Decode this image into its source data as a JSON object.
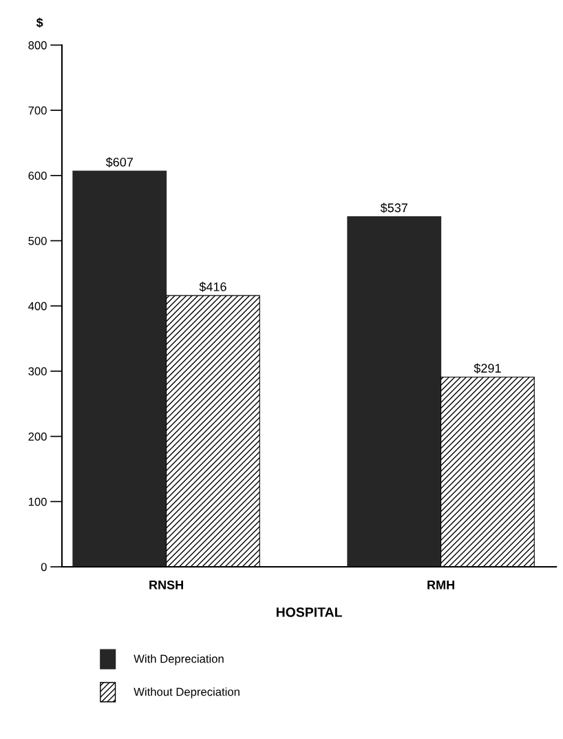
{
  "chart_data": {
    "type": "bar",
    "xlabel": "HOSPITAL",
    "ylabel": "$",
    "categories": [
      "RNSH",
      "RMH"
    ],
    "series": [
      {
        "name": "With Depreciation",
        "color": "#262626",
        "values": [
          607,
          537
        ],
        "value_labels": [
          "$607",
          "$537"
        ]
      },
      {
        "name": "Without Depreciation",
        "color": "#000000",
        "values": [
          416,
          291
        ],
        "value_labels": [
          "$416",
          "$291"
        ]
      }
    ],
    "ylim": [
      0,
      800
    ],
    "yticks": [
      0,
      100,
      200,
      300,
      400,
      500,
      600,
      700,
      800
    ],
    "grid": false,
    "legend": "bottom"
  }
}
